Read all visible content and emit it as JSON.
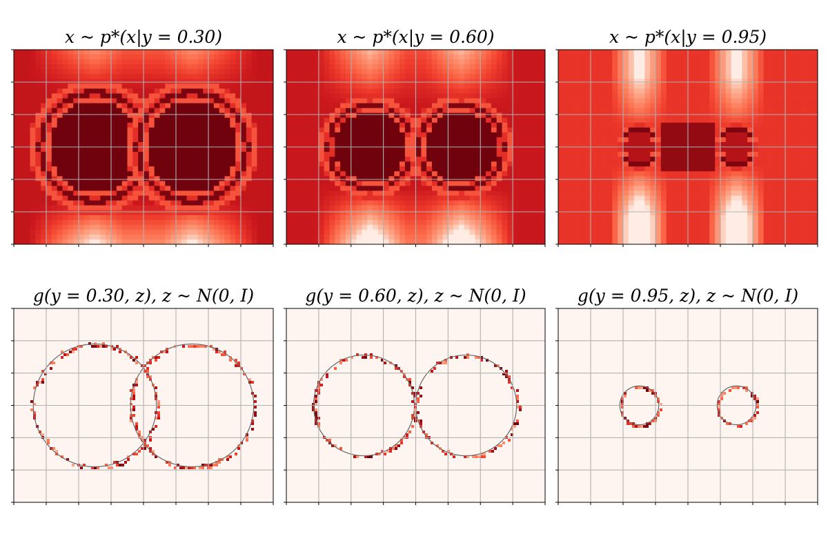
{
  "figure": {
    "colormap": [
      "#fff5f0",
      "#fcbba1",
      "#fc9272",
      "#fb6a4a",
      "#ef3b2c",
      "#cb181d",
      "#a50f15",
      "#67000d"
    ],
    "grid_color": "#b0b0b0",
    "curve_color": "#666666"
  },
  "chart_data": [
    {
      "type": "heatmap",
      "panel": "density-y-0.30",
      "title": "x ~ p*(x|y = 0.30)",
      "y": 0.3,
      "xlim": [
        -2,
        2
      ],
      "ylim": [
        -1.5,
        1.5
      ],
      "grid": true,
      "tick_labels": false,
      "background_level": 0.75,
      "rings": [
        {
          "cx": -0.75,
          "cy": 0,
          "r": 0.9,
          "inner_level": 0.98
        },
        {
          "cx": 0.75,
          "cy": 0,
          "r": 0.9,
          "inner_level": 0.98
        }
      ]
    },
    {
      "type": "heatmap",
      "panel": "density-y-0.60",
      "title": "x ~ p*(x|y = 0.60)",
      "y": 0.6,
      "xlim": [
        -2,
        2
      ],
      "ylim": [
        -1.5,
        1.5
      ],
      "grid": true,
      "tick_labels": false,
      "background_level": 0.72,
      "rings": [
        {
          "cx": -0.7,
          "cy": 0,
          "r": 0.7,
          "inner_level": 0.98
        },
        {
          "cx": 0.7,
          "cy": 0,
          "r": 0.7,
          "inner_level": 0.98
        }
      ]
    },
    {
      "type": "heatmap",
      "panel": "density-y-0.95",
      "title": "x ~ p*(x|y = 0.95)",
      "y": 0.95,
      "xlim": [
        -2,
        2
      ],
      "ylim": [
        -1.5,
        1.5
      ],
      "grid": true,
      "tick_labels": false,
      "background_level": 0.6,
      "rings": [
        {
          "cx": -0.75,
          "cy": 0,
          "r": 0.3,
          "inner_level": 0.8
        },
        {
          "cx": 0.75,
          "cy": 0,
          "r": 0.3,
          "inner_level": 0.8
        }
      ]
    },
    {
      "type": "heatmap",
      "panel": "samples-y-0.30",
      "title": "g(y = 0.30, z), z ~ N(0, I)",
      "y": 0.3,
      "xlim": [
        -2,
        2
      ],
      "ylim": [
        -1.5,
        1.5
      ],
      "grid": true,
      "tick_labels": false,
      "circles": [
        {
          "cx": -0.75,
          "cy": 0,
          "r": 0.95
        },
        {
          "cx": 0.75,
          "cy": 0,
          "r": 0.95
        }
      ]
    },
    {
      "type": "heatmap",
      "panel": "samples-y-0.60",
      "title": "g(y = 0.60, z), z ~ N(0, I)",
      "y": 0.6,
      "xlim": [
        -2,
        2
      ],
      "ylim": [
        -1.5,
        1.5
      ],
      "grid": true,
      "tick_labels": false,
      "circles": [
        {
          "cx": -0.8,
          "cy": 0,
          "r": 0.78
        },
        {
          "cx": 0.78,
          "cy": 0,
          "r": 0.78
        }
      ]
    },
    {
      "type": "heatmap",
      "panel": "samples-y-0.95",
      "title": "g(y = 0.95, z), z ~ N(0, I)",
      "y": 0.95,
      "xlim": [
        -2,
        2
      ],
      "ylim": [
        -1.5,
        1.5
      ],
      "grid": true,
      "tick_labels": false,
      "circles": [
        {
          "cx": -0.75,
          "cy": 0,
          "r": 0.3
        },
        {
          "cx": 0.75,
          "cy": 0,
          "r": 0.3
        }
      ]
    }
  ]
}
